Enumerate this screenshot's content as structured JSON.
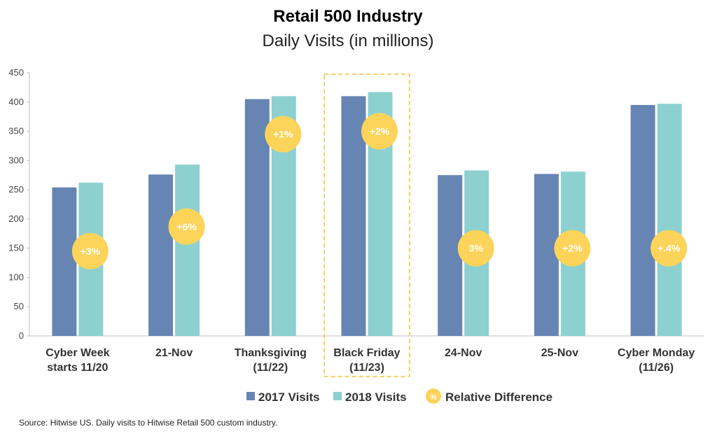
{
  "chart_data": {
    "type": "bar",
    "title": "Retail 500 Industry",
    "subtitle": "Daily Visits (in millions)",
    "categories": [
      [
        "Cyber Week",
        "starts 11/20"
      ],
      [
        "21-Nov"
      ],
      [
        "Thanksgiving",
        "(11/22)"
      ],
      [
        "Black Friday",
        "(11/23)"
      ],
      [
        "24-Nov"
      ],
      [
        "25-Nov"
      ],
      [
        "Cyber Monday",
        "(11/26)"
      ]
    ],
    "series": [
      {
        "name": "2017 Visits",
        "color": "#6685b3",
        "values": [
          254,
          276,
          405,
          410,
          275,
          277,
          395
        ]
      },
      {
        "name": "2018 Visits",
        "color": "#8dd0d0",
        "values": [
          262,
          293,
          410,
          417,
          283,
          281,
          397
        ]
      }
    ],
    "relative_difference": {
      "name": "Relative Difference",
      "color": "#fcd45a",
      "legend_symbol": "%",
      "labels": [
        "+3%",
        "+6%",
        "+1%",
        "+2%",
        "3%",
        "+2%",
        "+.4%"
      ],
      "y_positions": [
        145,
        187,
        345,
        350,
        150,
        150,
        150
      ]
    },
    "highlight_category_index": 3,
    "highlight_color": "#f3c32d",
    "ylim": [
      0,
      450
    ],
    "yticks": [
      0,
      50,
      100,
      150,
      200,
      250,
      300,
      350,
      400,
      450
    ],
    "grid": false,
    "legend_position": "bottom"
  },
  "source": "Source: Hitwise US. Daily visits to Hitwise Retail 500 custom industry."
}
